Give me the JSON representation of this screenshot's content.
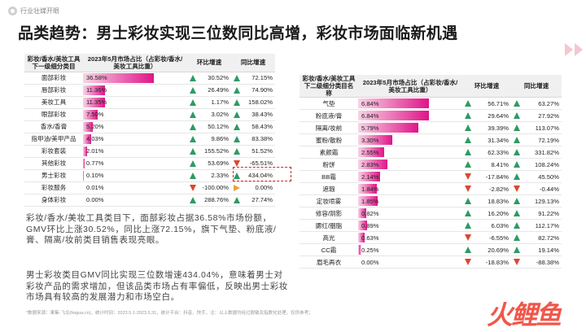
{
  "logo_text": "行业壮媒开眼",
  "title": "品类趋势：男士彩妆实现三位数同比高增，彩妆市场面临新机遇",
  "left_table": {
    "headers": [
      "彩妆/香水/美妆工具下一级细分类目",
      "2023年5月市场占比（占彩妆/香水/美妆工具比重）",
      "环比增速",
      "同比增速"
    ],
    "rows": [
      {
        "name": "面部彩妆",
        "share": "36.58%",
        "share_value": 36.58,
        "mom": "30.52%",
        "mom_dir": "up",
        "yoy": "72.15%",
        "yoy_dir": "up"
      },
      {
        "name": "唇部彩妆",
        "share": "11.36%",
        "share_value": 11.36,
        "mom": "26.49%",
        "mom_dir": "up",
        "yoy": "74.90%",
        "yoy_dir": "up"
      },
      {
        "name": "美妆工具",
        "share": "11.35%",
        "share_value": 11.35,
        "mom": "1.17%",
        "mom_dir": "up",
        "yoy": "158.02%",
        "yoy_dir": "up"
      },
      {
        "name": "眼部彩妆",
        "share": "7.50%",
        "share_value": 7.5,
        "mom": "3.02%",
        "mom_dir": "up",
        "yoy": "38.43%",
        "yoy_dir": "up"
      },
      {
        "name": "香水/香膏",
        "share": "5.20%",
        "share_value": 5.2,
        "mom": "50.12%",
        "mom_dir": "up",
        "yoy": "58.43%",
        "yoy_dir": "up"
      },
      {
        "name": "指甲油/美甲产品",
        "share": "4.03%",
        "share_value": 4.03,
        "mom": "9.86%",
        "mom_dir": "up",
        "yoy": "83.38%",
        "yoy_dir": "up"
      },
      {
        "name": "彩妆套装",
        "share": "2.01%",
        "share_value": 2.01,
        "mom": "155.52%",
        "mom_dir": "up",
        "yoy": "51.52%",
        "yoy_dir": "up"
      },
      {
        "name": "其他彩妆",
        "share": "0.77%",
        "share_value": 0.77,
        "mom": "53.69%",
        "mom_dir": "up",
        "yoy": "-65.51%",
        "yoy_dir": "down"
      },
      {
        "name": "男士彩妆",
        "share": "0.10%",
        "share_value": 0.1,
        "mom": "2.33%",
        "mom_dir": "up",
        "yoy": "434.04%",
        "yoy_dir": "up"
      },
      {
        "name": "彩妆服务",
        "share": "0.01%",
        "share_value": 0.01,
        "mom": "-100.00%",
        "mom_dir": "down",
        "yoy": "0.00%",
        "yoy_dir": "side"
      },
      {
        "name": "身体彩妆",
        "share": "0.00%",
        "share_value": 0.0,
        "mom": "288.76%",
        "mom_dir": "up",
        "yoy": "27.74%",
        "yoy_dir": "up"
      }
    ]
  },
  "right_table": {
    "headers": [
      "彩妆/香水/美妆工具下二级细分类目名称",
      "2023年5月市场占比（占彩妆/香水/美妆工具比重）",
      "环比增速",
      "同比增速"
    ],
    "rows": [
      {
        "name": "气垫",
        "share": "6.84%",
        "share_value": 6.84,
        "mom": "56.71%",
        "mom_dir": "up",
        "yoy": "63.27%",
        "yoy_dir": "up"
      },
      {
        "name": "粉底液/膏",
        "share": "6.84%",
        "share_value": 6.84,
        "mom": "29.64%",
        "mom_dir": "up",
        "yoy": "27.92%",
        "yoy_dir": "up"
      },
      {
        "name": "隔离/妆前",
        "share": "5.79%",
        "share_value": 5.79,
        "mom": "39.39%",
        "mom_dir": "up",
        "yoy": "113.07%",
        "yoy_dir": "up"
      },
      {
        "name": "蜜粉/散粉",
        "share": "3.30%",
        "share_value": 3.3,
        "mom": "31.34%",
        "mom_dir": "up",
        "yoy": "72.19%",
        "yoy_dir": "up"
      },
      {
        "name": "素颜霜",
        "share": "2.55%",
        "share_value": 2.55,
        "mom": "62.33%",
        "mom_dir": "up",
        "yoy": "331.82%",
        "yoy_dir": "up"
      },
      {
        "name": "粉饼",
        "share": "2.83%",
        "share_value": 2.83,
        "mom": "8.41%",
        "mom_dir": "up",
        "yoy": "108.24%",
        "yoy_dir": "up"
      },
      {
        "name": "BB霜",
        "share": "2.14%",
        "share_value": 2.14,
        "mom": "-17.84%",
        "mom_dir": "down",
        "yoy": "45.50%",
        "yoy_dir": "up"
      },
      {
        "name": "遮瑕",
        "share": "1.84%",
        "share_value": 1.84,
        "mom": "-2.82%",
        "mom_dir": "down",
        "yoy": "-0.44%",
        "yoy_dir": "down"
      },
      {
        "name": "定妆喷雾",
        "share": "1.85%",
        "share_value": 1.85,
        "mom": "18.83%",
        "mom_dir": "up",
        "yoy": "129.13%",
        "yoy_dir": "up"
      },
      {
        "name": "修容/阴影",
        "share": "0.82%",
        "share_value": 0.82,
        "mom": "16.20%",
        "mom_dir": "up",
        "yoy": "91.22%",
        "yoy_dir": "up"
      },
      {
        "name": "腮红/胭脂",
        "share": "0.89%",
        "share_value": 0.89,
        "mom": "6.03%",
        "mom_dir": "up",
        "yoy": "112.17%",
        "yoy_dir": "up"
      },
      {
        "name": "高光",
        "share": "0.63%",
        "share_value": 0.63,
        "mom": "-6.55%",
        "mom_dir": "down",
        "yoy": "82.72%",
        "yoy_dir": "up"
      },
      {
        "name": "CC霜",
        "share": "0.25%",
        "share_value": 0.25,
        "mom": "20.69%",
        "mom_dir": "up",
        "yoy": "19.14%",
        "yoy_dir": "up"
      },
      {
        "name": "眉毛再衣",
        "share": "0.00%",
        "share_value": 0.0,
        "mom": "-18.83%",
        "mom_dir": "down",
        "yoy": "-88.38%",
        "yoy_dir": "down"
      }
    ]
  },
  "paragraph1": "彩妆/香水/美妆工具类目下，面部彩妆占据36.58%市场份额，GMV环比上涨30.52%，同比上涨72.15%，旗下气垫、粉底液/膏、隔离/妆前类目销售表现亮眼。",
  "paragraph2": "男士彩妆类目GMV同比实现三位数增速434.04%，意味着男士对彩妆产品的需求增加，但该品类市场占有率偏低，反映出男士彩妆市场具有较高的发展潜力和市场空白。",
  "footnote": "*数据来源：果集·飞瓜(feigua.cn)，统计时间：2023.5.1-2023.5.31，统计平台：抖音、快手，注：以上数据均经过脱敏及指数化处理，仅供参考；",
  "brand_text": "火鲤鱼",
  "colors": {
    "bar_start": "#f7d4e6",
    "bar_end": "#e01488",
    "up": "#2e9a63",
    "down": "#d9472f",
    "highlight": "#d0202a"
  }
}
